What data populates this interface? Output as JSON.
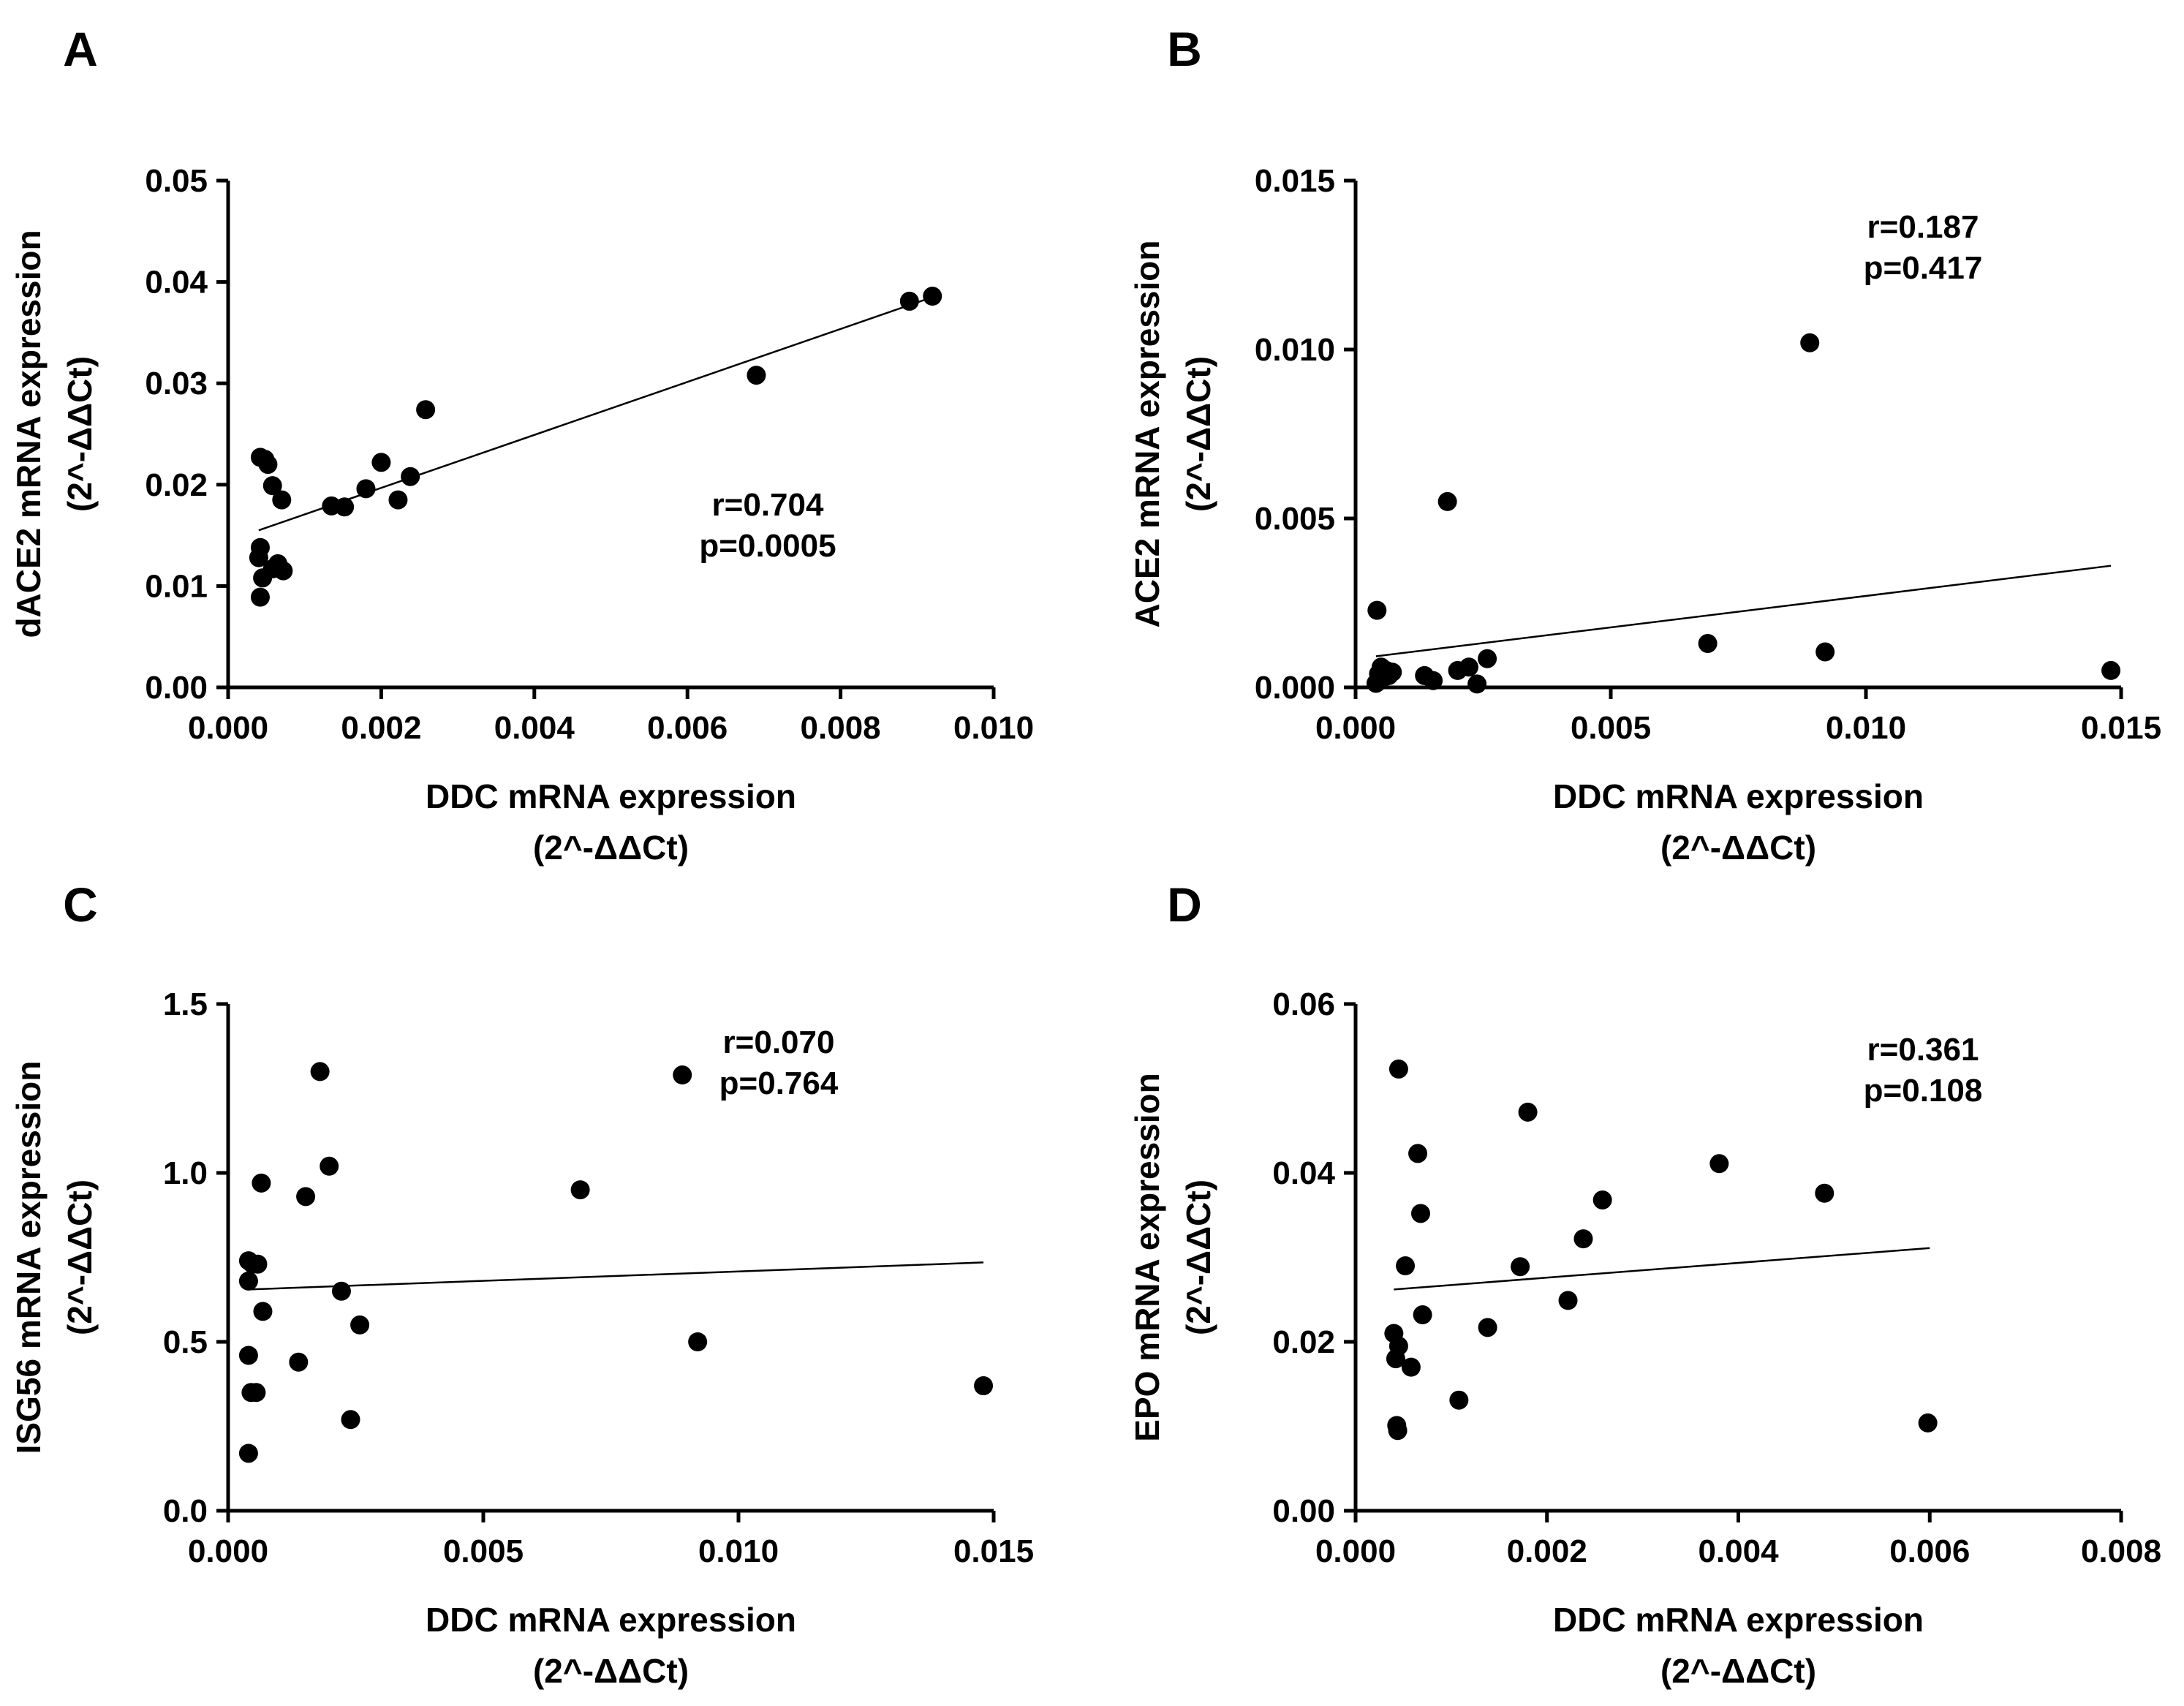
{
  "chart_data": [
    {
      "panel": "A",
      "type": "scatter",
      "xlabel": [
        "DDC mRNA expression",
        "(2^-ΔΔCt)"
      ],
      "ylabel": [
        "dACE2 mRNA expression",
        "(2^-ΔΔCt)"
      ],
      "xlim": [
        0,
        0.01
      ],
      "ylim": [
        0,
        0.05
      ],
      "xticks": [
        "0.000",
        "0.002",
        "0.004",
        "0.006",
        "0.008",
        "0.010"
      ],
      "yticks": [
        "0.00",
        "0.01",
        "0.02",
        "0.03",
        "0.04",
        "0.05"
      ],
      "stats": [
        "r=0.704",
        "p=0.0005"
      ],
      "fit_line": {
        "x": [
          0.0004,
          0.0092
        ],
        "y": [
          0.0155,
          0.0385
        ]
      },
      "points": [
        {
          "x": 0.00042,
          "y": 0.0227
        },
        {
          "x": 0.00048,
          "y": 0.0225
        },
        {
          "x": 0.00052,
          "y": 0.022
        },
        {
          "x": 0.00058,
          "y": 0.0199
        },
        {
          "x": 0.0007,
          "y": 0.0185
        },
        {
          "x": 0.0004,
          "y": 0.0128
        },
        {
          "x": 0.00042,
          "y": 0.0138
        },
        {
          "x": 0.00045,
          "y": 0.0108
        },
        {
          "x": 0.00042,
          "y": 0.0089
        },
        {
          "x": 0.00058,
          "y": 0.0117
        },
        {
          "x": 0.00065,
          "y": 0.0122
        },
        {
          "x": 0.00072,
          "y": 0.0115
        },
        {
          "x": 0.00135,
          "y": 0.0179
        },
        {
          "x": 0.00152,
          "y": 0.0178
        },
        {
          "x": 0.0018,
          "y": 0.0196
        },
        {
          "x": 0.002,
          "y": 0.0222
        },
        {
          "x": 0.00222,
          "y": 0.0185
        },
        {
          "x": 0.00238,
          "y": 0.0208
        },
        {
          "x": 0.00258,
          "y": 0.0274
        },
        {
          "x": 0.0069,
          "y": 0.0308
        },
        {
          "x": 0.0089,
          "y": 0.0381
        },
        {
          "x": 0.0092,
          "y": 0.0386
        }
      ]
    },
    {
      "panel": "B",
      "type": "scatter",
      "xlabel": [
        "DDC mRNA expression",
        "(2^-ΔΔCt)"
      ],
      "ylabel": [
        "ACE2 mRNA expression",
        "(2^-ΔΔCt)"
      ],
      "xlim": [
        0,
        0.015
      ],
      "ylim": [
        0,
        0.015
      ],
      "xticks": [
        "0.000",
        "0.005",
        "0.010",
        "0.015"
      ],
      "yticks": [
        "0.000",
        "0.005",
        "0.010",
        "0.015"
      ],
      "stats": [
        "r=0.187",
        "p=0.417"
      ],
      "fit_line": {
        "x": [
          0.0004,
          0.0148
        ],
        "y": [
          0.00092,
          0.0036
        ]
      },
      "points": [
        {
          "x": 0.00042,
          "y": 0.00228
        },
        {
          "x": 0.0004,
          "y": 0.00012
        },
        {
          "x": 0.00045,
          "y": 0.0004
        },
        {
          "x": 0.0005,
          "y": 0.0006
        },
        {
          "x": 0.00055,
          "y": 0.0003
        },
        {
          "x": 0.0006,
          "y": 0.0005
        },
        {
          "x": 0.00065,
          "y": 0.00035
        },
        {
          "x": 0.00072,
          "y": 0.00045
        },
        {
          "x": 0.00048,
          "y": 0.0002
        },
        {
          "x": 0.00135,
          "y": 0.00035
        },
        {
          "x": 0.00152,
          "y": 0.0002
        },
        {
          "x": 0.0018,
          "y": 0.0055
        },
        {
          "x": 0.002,
          "y": 0.0005
        },
        {
          "x": 0.00222,
          "y": 0.0006
        },
        {
          "x": 0.00238,
          "y": 0.0001
        },
        {
          "x": 0.00258,
          "y": 0.00085
        },
        {
          "x": 0.0069,
          "y": 0.0013
        },
        {
          "x": 0.0089,
          "y": 0.0102
        },
        {
          "x": 0.0092,
          "y": 0.00105
        },
        {
          "x": 0.0148,
          "y": 0.0005
        }
      ]
    },
    {
      "panel": "C",
      "type": "scatter",
      "xlabel": [
        "DDC mRNA expression",
        "(2^-ΔΔCt)"
      ],
      "ylabel": [
        "ISG56 mRNA expression",
        "(2^-ΔΔCt)"
      ],
      "xlim": [
        0,
        0.015
      ],
      "ylim": [
        0,
        1.5
      ],
      "xticks": [
        "0.000",
        "0.005",
        "0.010",
        "0.015"
      ],
      "yticks": [
        "0.0",
        "0.5",
        "1.0",
        "1.5"
      ],
      "stats": [
        "r=0.070",
        "p=0.764"
      ],
      "fit_line": {
        "x": [
          0.0004,
          0.0148
        ],
        "y": [
          0.655,
          0.735
        ]
      },
      "points": [
        {
          "x": 0.0004,
          "y": 0.74
        },
        {
          "x": 0.00048,
          "y": 0.73
        },
        {
          "x": 0.00058,
          "y": 0.73
        },
        {
          "x": 0.0004,
          "y": 0.68
        },
        {
          "x": 0.0004,
          "y": 0.46
        },
        {
          "x": 0.00045,
          "y": 0.35
        },
        {
          "x": 0.00055,
          "y": 0.35
        },
        {
          "x": 0.0004,
          "y": 0.17
        },
        {
          "x": 0.00065,
          "y": 0.97
        },
        {
          "x": 0.00068,
          "y": 0.59
        },
        {
          "x": 0.00138,
          "y": 0.44
        },
        {
          "x": 0.00152,
          "y": 0.93
        },
        {
          "x": 0.0018,
          "y": 1.3
        },
        {
          "x": 0.00198,
          "y": 1.02
        },
        {
          "x": 0.00222,
          "y": 0.65
        },
        {
          "x": 0.0024,
          "y": 0.27
        },
        {
          "x": 0.00258,
          "y": 0.55
        },
        {
          "x": 0.0069,
          "y": 0.95
        },
        {
          "x": 0.0089,
          "y": 1.29
        },
        {
          "x": 0.0092,
          "y": 0.5
        },
        {
          "x": 0.0148,
          "y": 0.37
        }
      ]
    },
    {
      "panel": "D",
      "type": "scatter",
      "xlabel": [
        "DDC mRNA expression",
        "(2^-ΔΔCt)"
      ],
      "ylabel": [
        "EPO mRNA expression",
        "(2^-ΔΔCt)"
      ],
      "xlim": [
        0,
        0.008
      ],
      "ylim": [
        0,
        0.06
      ],
      "xticks": [
        "0.000",
        "0.002",
        "0.004",
        "0.006",
        "0.008"
      ],
      "yticks": [
        "0.00",
        "0.02",
        "0.04",
        "0.06"
      ],
      "stats": [
        "r=0.361",
        "p=0.108"
      ],
      "fit_line": {
        "x": [
          0.0004,
          0.006
        ],
        "y": [
          0.0262,
          0.0311
        ]
      },
      "points": [
        {
          "x": 0.00045,
          "y": 0.0523
        },
        {
          "x": 0.0004,
          "y": 0.021
        },
        {
          "x": 0.00042,
          "y": 0.018
        },
        {
          "x": 0.00045,
          "y": 0.0195
        },
        {
          "x": 0.00043,
          "y": 0.0101
        },
        {
          "x": 0.00044,
          "y": 0.0095
        },
        {
          "x": 0.00052,
          "y": 0.029
        },
        {
          "x": 0.00058,
          "y": 0.017
        },
        {
          "x": 0.00065,
          "y": 0.0423
        },
        {
          "x": 0.00068,
          "y": 0.0352
        },
        {
          "x": 0.0007,
          "y": 0.0232
        },
        {
          "x": 0.00108,
          "y": 0.0131
        },
        {
          "x": 0.00138,
          "y": 0.0217
        },
        {
          "x": 0.00172,
          "y": 0.0289
        },
        {
          "x": 0.0018,
          "y": 0.0472
        },
        {
          "x": 0.00222,
          "y": 0.0249
        },
        {
          "x": 0.00238,
          "y": 0.0322
        },
        {
          "x": 0.00258,
          "y": 0.0368
        },
        {
          "x": 0.0038,
          "y": 0.0411
        },
        {
          "x": 0.0049,
          "y": 0.0376
        },
        {
          "x": 0.00598,
          "y": 0.0104
        }
      ]
    }
  ]
}
